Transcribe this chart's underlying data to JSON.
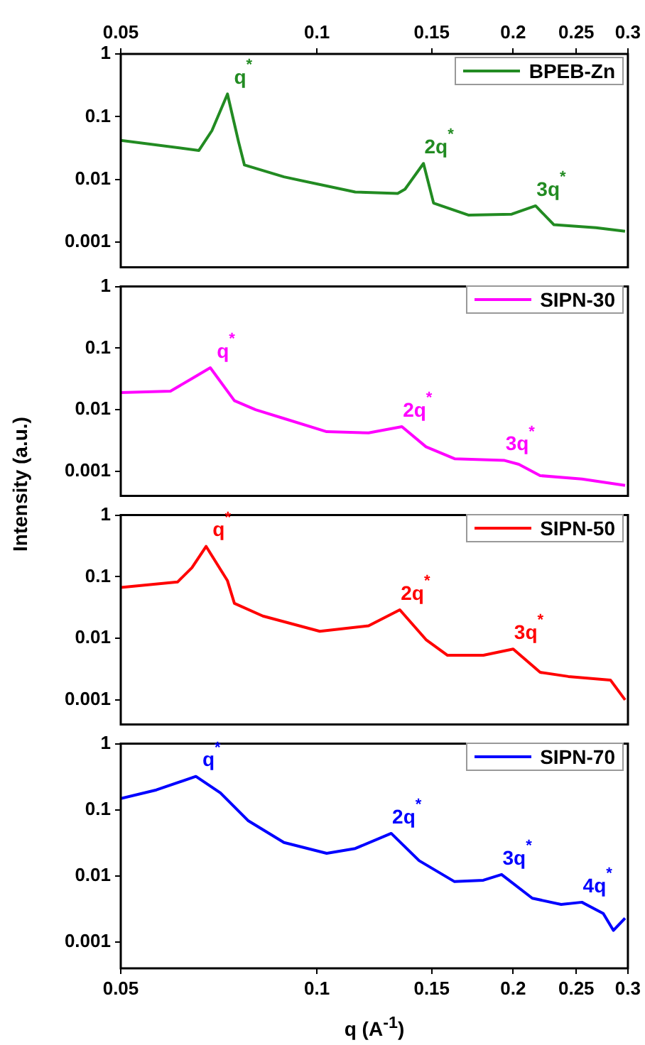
{
  "chart_data": [
    {
      "type": "line",
      "log": "xy",
      "xlim": [
        0.05,
        0.3
      ],
      "xticks": [
        0.05,
        0.1,
        0.15,
        0.2,
        0.25,
        0.3
      ],
      "ylim": [
        0.0004,
        1
      ],
      "yticks": [
        0.001,
        0.01,
        0.1,
        1
      ],
      "legend": "top right",
      "series": [
        {
          "name": "BPEB-Zn",
          "color": "#228b22",
          "x": [
            0.05,
            0.0659,
            0.069,
            0.0729,
            0.0758,
            0.0774,
            0.089,
            0.1145,
            0.133,
            0.1365,
            0.1457,
            0.151,
            0.171,
            0.199,
            0.2165,
            0.231,
            0.268,
            0.297
          ],
          "values": [
            0.042,
            0.029,
            0.06,
            0.23,
            0.04,
            0.017,
            0.011,
            0.0063,
            0.006,
            0.007,
            0.018,
            0.0042,
            0.0027,
            0.0028,
            0.0038,
            0.0019,
            0.0017,
            0.0015
          ]
        }
      ],
      "annotations": [
        {
          "text": "q$^{*}$",
          "x": 0.0729,
          "y": 0.23
        },
        {
          "text": "2q$^{*}$",
          "x": 0.1457,
          "y": 0.018
        },
        {
          "text": "3q$^{*}$",
          "x": 0.2165,
          "y": 0.0038
        }
      ]
    },
    {
      "type": "line",
      "log": "xy",
      "xlim": [
        0.05,
        0.3
      ],
      "xticks": [
        0.05,
        0.1,
        0.15,
        0.2,
        0.25,
        0.3
      ],
      "ylim": [
        0.0004,
        1
      ],
      "yticks": [
        0.001,
        0.01,
        0.1,
        1
      ],
      "tick_labels": "y",
      "legend": "top right",
      "series": [
        {
          "name": "SIPN-30",
          "color": "#ff00ff",
          "x": [
            0.05,
            0.0596,
            0.0643,
            0.0686,
            0.0747,
            0.0805,
            0.089,
            0.1035,
            0.12,
            0.135,
            0.147,
            0.1626,
            0.194,
            0.204,
            0.22,
            0.255,
            0.297
          ],
          "values": [
            0.019,
            0.02,
            0.032,
            0.048,
            0.014,
            0.01,
            0.0072,
            0.0044,
            0.0042,
            0.0053,
            0.0025,
            0.0016,
            0.0015,
            0.0013,
            0.00085,
            0.00075,
            0.00059
          ]
        }
      ],
      "annotations": [
        {
          "text": "q$^{*}$",
          "x": 0.0686,
          "y": 0.048
        },
        {
          "text": "2q$^{*}$",
          "x": 0.135,
          "y": 0.0053
        },
        {
          "text": "3q$^{*}$",
          "x": 0.194,
          "y": 0.0015
        }
      ]
    },
    {
      "type": "line",
      "log": "xy",
      "xlim": [
        0.05,
        0.3
      ],
      "xticks": [
        0.05,
        0.1,
        0.15,
        0.2,
        0.25,
        0.3
      ],
      "ylim": [
        0.0004,
        1
      ],
      "yticks": [
        0.001,
        0.01,
        0.1,
        1
      ],
      "tick_labels": "y",
      "legend": "top right",
      "ylabel": "Intensity (a.u.)",
      "series": [
        {
          "name": "SIPN-50",
          "color": "#ff0000",
          "x": [
            0.05,
            0.0611,
            0.0643,
            0.0676,
            0.0729,
            0.0747,
            0.0826,
            0.101,
            0.12,
            0.134,
            0.147,
            0.1586,
            0.18,
            0.2,
            0.22,
            0.243,
            0.282,
            0.297
          ],
          "values": [
            0.067,
            0.082,
            0.14,
            0.31,
            0.086,
            0.037,
            0.023,
            0.013,
            0.016,
            0.029,
            0.0095,
            0.0053,
            0.0053,
            0.0067,
            0.0028,
            0.0024,
            0.0021,
            0.001
          ]
        }
      ],
      "annotations": [
        {
          "text": "q$^{*}$",
          "x": 0.0676,
          "y": 0.31
        },
        {
          "text": "2q$^{*}$",
          "x": 0.134,
          "y": 0.029
        },
        {
          "text": "3q$^{*}$",
          "x": 0.2,
          "y": 0.0067
        }
      ]
    },
    {
      "type": "line",
      "log": "xy",
      "xlim": [
        0.05,
        0.3
      ],
      "xticks": [
        0.05,
        0.1,
        0.15,
        0.2,
        0.25,
        0.3
      ],
      "ylim": [
        0.0004,
        1
      ],
      "yticks": [
        0.001,
        0.01,
        0.1,
        1
      ],
      "legend": "top right",
      "xlabel": "q (A$^{-1}$)",
      "series": [
        {
          "name": "SIPN-70",
          "color": "#0000ff",
          "x": [
            0.05,
            0.0567,
            0.0652,
            0.0711,
            0.0785,
            0.089,
            0.1035,
            0.1145,
            0.13,
            0.1435,
            0.1626,
            0.18,
            0.192,
            0.214,
            0.237,
            0.255,
            0.275,
            0.285,
            0.297
          ],
          "values": [
            0.148,
            0.2,
            0.32,
            0.18,
            0.068,
            0.032,
            0.022,
            0.026,
            0.044,
            0.017,
            0.0082,
            0.0086,
            0.0105,
            0.0046,
            0.0037,
            0.004,
            0.0027,
            0.0015,
            0.0023
          ]
        }
      ],
      "annotations": [
        {
          "text": "q$^{*}$",
          "x": 0.0652,
          "y": 0.32
        },
        {
          "text": "2q$^{*}$",
          "x": 0.13,
          "y": 0.044
        },
        {
          "text": "3q$^{*}$",
          "x": 0.192,
          "y": 0.0105
        },
        {
          "text": "4q$^{*}$",
          "x": 0.255,
          "y": 0.004
        }
      ]
    }
  ]
}
